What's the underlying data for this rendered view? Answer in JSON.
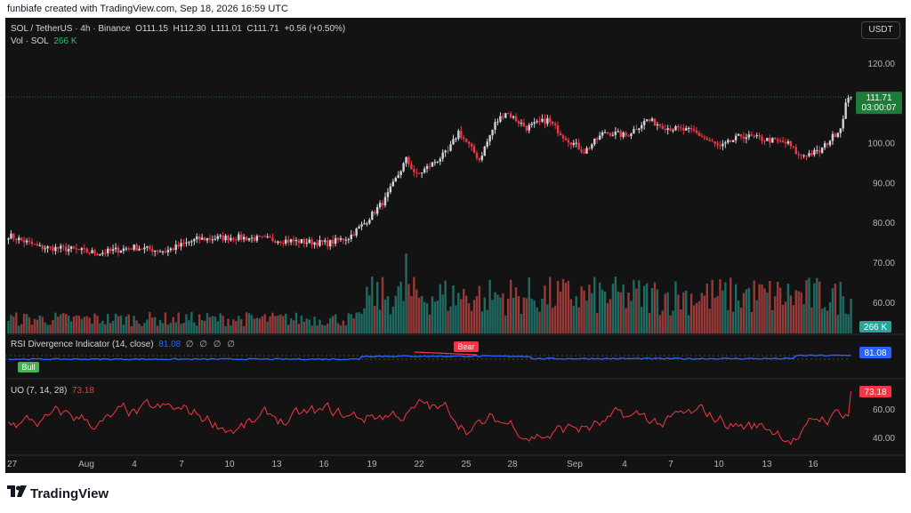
{
  "header": {
    "created_by": "funbiafe created with TradingView.com, Sep 18, 2026 16:59 UTC"
  },
  "symbol_line": {
    "symbol": "SOL / TetherUS · 4h · Binance",
    "o_label": "O",
    "o": "111.15",
    "h_label": "H",
    "h": "112.30",
    "l_label": "L",
    "l": "111.01",
    "c_label": "C",
    "c": "111.71",
    "change": "+0.56 (+0.50%)"
  },
  "volume_line": {
    "label": "Vol · SOL",
    "value": "266 K"
  },
  "currency_button": "USDT",
  "price_axis": [
    "120.00",
    "110.00",
    "100.00",
    "90.00",
    "80.00",
    "70.00",
    "60.00"
  ],
  "last_price": {
    "price": "111.71",
    "countdown": "03:00:07"
  },
  "volume_tag": "266 K",
  "rsi": {
    "label": "RSI Divergence Indicator (14, close)",
    "value": "81.08",
    "placeholders": "∅ ∅ ∅ ∅",
    "tag": "81.08",
    "bull_label": "Bull",
    "bear_label": "Bear"
  },
  "uo": {
    "label": "UO (7, 14, 28)",
    "value": "73.18",
    "tag": "73.18",
    "axis": [
      "60.00",
      "40.00"
    ]
  },
  "time_axis": [
    "27",
    "Aug",
    "4",
    "7",
    "10",
    "13",
    "16",
    "19",
    "22",
    "25",
    "28",
    "Sep",
    "4",
    "7",
    "10",
    "13",
    "16"
  ],
  "footer": {
    "brand": "TradingView",
    "brand_icon": "tradingview-logo-icon"
  },
  "colors": {
    "up": "#26a69a",
    "down": "#ef5350",
    "candle_up": "#d1d4dc",
    "candle_down": "#f23645",
    "rsi_line": "#2962ff",
    "uo_line": "#f23645",
    "last_price_bg": "#1e7b3a",
    "bull_tag": "#4caf50",
    "bear_tag": "#f23645"
  },
  "chart_data": [
    {
      "type": "candlestick",
      "title": "SOL / TetherUS · 4h · Binance",
      "ylim": [
        62,
        124
      ],
      "yticks": [
        120,
        110,
        100,
        90,
        80,
        70,
        60
      ],
      "x_ticks": [
        "27",
        "Aug",
        "4",
        "7",
        "10",
        "13",
        "16",
        "19",
        "22",
        "25",
        "28",
        "Sep",
        "4",
        "7",
        "10",
        "13",
        "16"
      ],
      "anchors": [
        {
          "i": 0,
          "v": 77
        },
        {
          "i": 12,
          "v": 74
        },
        {
          "i": 24,
          "v": 73.5
        },
        {
          "i": 34,
          "v": 72.5
        },
        {
          "i": 48,
          "v": 74
        },
        {
          "i": 60,
          "v": 73
        },
        {
          "i": 72,
          "v": 76
        },
        {
          "i": 86,
          "v": 76.5
        },
        {
          "i": 100,
          "v": 76
        },
        {
          "i": 110,
          "v": 75.5
        },
        {
          "i": 122,
          "v": 75
        },
        {
          "i": 130,
          "v": 76.5
        },
        {
          "i": 136,
          "v": 80
        },
        {
          "i": 144,
          "v": 86
        },
        {
          "i": 152,
          "v": 96
        },
        {
          "i": 156,
          "v": 92
        },
        {
          "i": 162,
          "v": 95
        },
        {
          "i": 168,
          "v": 98
        },
        {
          "i": 172,
          "v": 103
        },
        {
          "i": 180,
          "v": 96
        },
        {
          "i": 186,
          "v": 105
        },
        {
          "i": 190,
          "v": 108
        },
        {
          "i": 198,
          "v": 104
        },
        {
          "i": 206,
          "v": 106
        },
        {
          "i": 212,
          "v": 102
        },
        {
          "i": 220,
          "v": 98
        },
        {
          "i": 228,
          "v": 103
        },
        {
          "i": 236,
          "v": 102
        },
        {
          "i": 244,
          "v": 106
        },
        {
          "i": 252,
          "v": 104
        },
        {
          "i": 262,
          "v": 103
        },
        {
          "i": 272,
          "v": 99
        },
        {
          "i": 280,
          "v": 102
        },
        {
          "i": 290,
          "v": 101
        },
        {
          "i": 298,
          "v": 100
        },
        {
          "i": 302,
          "v": 97
        },
        {
          "i": 310,
          "v": 98
        },
        {
          "i": 318,
          "v": 104
        },
        {
          "i": 320,
          "v": 110
        },
        {
          "i": 322,
          "v": 111.71
        }
      ],
      "last": 111.71
    },
    {
      "type": "bar",
      "title": "Vol · SOL",
      "last": "266 K",
      "relative_volume": {
        "baseline": 0.18,
        "breakout_start_index": 136,
        "breakout_mean": 0.55,
        "spikes": [
          {
            "i": 152,
            "v": 1.0
          },
          {
            "i": 170,
            "v": 0.6
          },
          {
            "i": 182,
            "v": 0.45
          },
          {
            "i": 282,
            "v": 0.55
          },
          {
            "i": 316,
            "v": 0.62
          }
        ]
      }
    },
    {
      "type": "line",
      "title": "RSI Divergence Indicator (14, close)",
      "last": 81.08,
      "labels": [
        "Bull",
        "Bear"
      ]
    },
    {
      "type": "line",
      "title": "UO (7, 14, 28)",
      "yticks": [
        60,
        40
      ],
      "last": 73.18
    }
  ]
}
